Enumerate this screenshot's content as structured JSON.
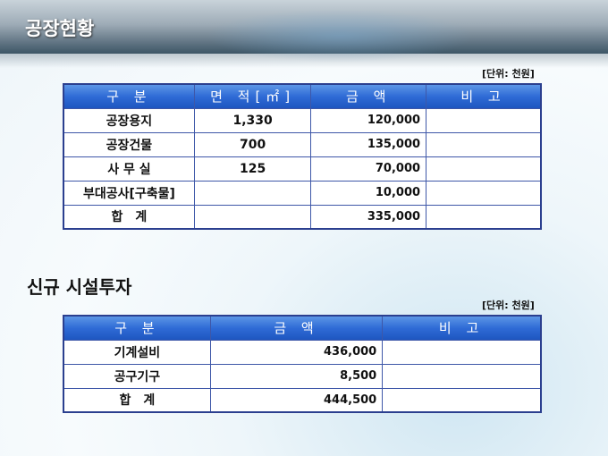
{
  "title": "공장현황",
  "unit": "[단위: 천원]",
  "factory_table": {
    "headers": [
      "구 분",
      "면 적[㎡]",
      "금 액",
      "비 고"
    ],
    "rows": [
      [
        "공장용지",
        "1,330",
        "120,000",
        ""
      ],
      [
        "공장건물",
        "700",
        "135,000",
        ""
      ],
      [
        "사 무 실",
        "125",
        "70,000",
        ""
      ],
      [
        "부대공사[구축물]",
        "",
        "10,000",
        ""
      ],
      [
        "합　계",
        "",
        "335,000",
        ""
      ]
    ]
  },
  "section2_title": "신규 시설투자",
  "unit2": "[단위: 천원]",
  "investment_table": {
    "headers": [
      "구 분",
      "금 액",
      "비 고"
    ],
    "rows": [
      [
        "기계설비",
        "436,000",
        ""
      ],
      [
        "공구기구",
        "8,500",
        ""
      ],
      [
        "합　계",
        "444,500",
        ""
      ]
    ]
  }
}
